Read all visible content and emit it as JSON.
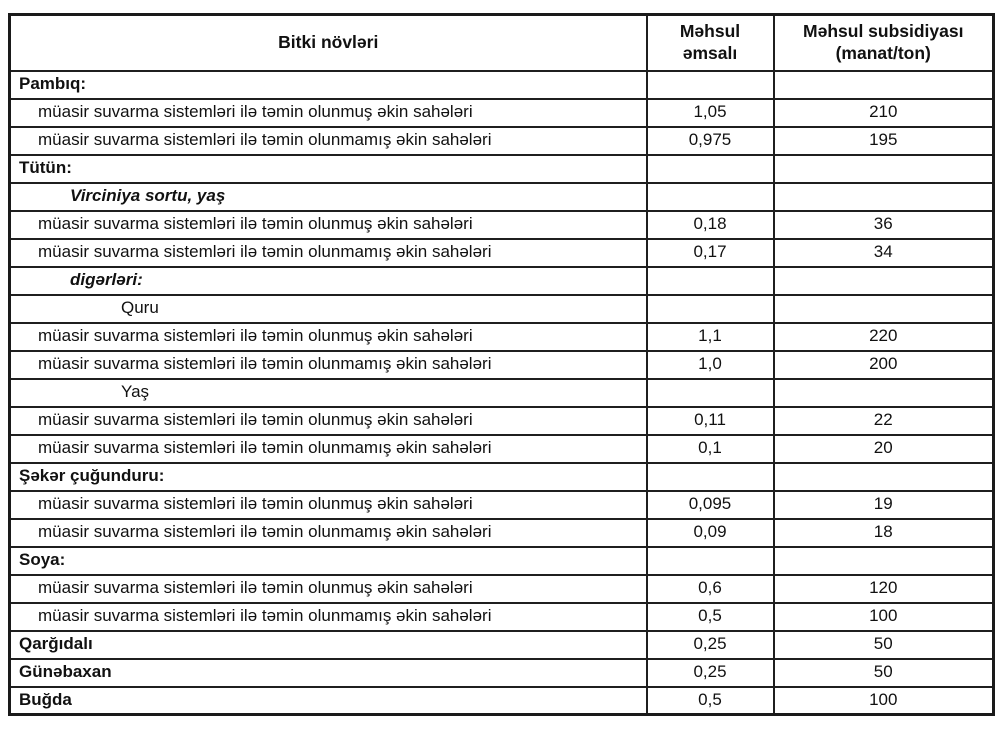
{
  "table": {
    "columns": [
      {
        "label": "Bitki növləri"
      },
      {
        "label": "Məhsul\nəmsalı"
      },
      {
        "label": "Məhsul subsidiyası\n(manat/ton)"
      }
    ],
    "rows": [
      {
        "label": "Pambıq:",
        "style": "bold",
        "indent": 0,
        "coef": "",
        "subsidy": ""
      },
      {
        "label": "müasir suvarma sistemləri ilə təmin olunmuş əkin sahələri",
        "style": "normal",
        "indent": 1,
        "coef": "1,05",
        "subsidy": "210"
      },
      {
        "label": "müasir suvarma sistemləri ilə təmin olunmamış əkin sahələri",
        "style": "normal",
        "indent": 1,
        "coef": "0,975",
        "subsidy": "195"
      },
      {
        "label": "Tütün:",
        "style": "bold",
        "indent": 0,
        "coef": "",
        "subsidy": ""
      },
      {
        "label": "Virciniya sortu, yaş",
        "style": "bold-italic",
        "indent": 2,
        "coef": "",
        "subsidy": ""
      },
      {
        "label": "müasir suvarma sistemləri ilə təmin olunmuş əkin sahələri",
        "style": "normal",
        "indent": 1,
        "coef": "0,18",
        "subsidy": "36"
      },
      {
        "label": "müasir suvarma sistemləri ilə təmin olunmamış əkin sahələri",
        "style": "normal",
        "indent": 1,
        "coef": "0,17",
        "subsidy": "34"
      },
      {
        "label": "digərləri:",
        "style": "bold-italic",
        "indent": 2,
        "coef": "",
        "subsidy": ""
      },
      {
        "label": "Quru",
        "style": "normal",
        "indent": 3,
        "coef": "",
        "subsidy": ""
      },
      {
        "label": "müasir suvarma sistemləri ilə təmin olunmuş əkin sahələri",
        "style": "normal",
        "indent": 1,
        "coef": "1,1",
        "subsidy": "220"
      },
      {
        "label": "müasir suvarma sistemləri ilə təmin olunmamış əkin sahələri",
        "style": "normal",
        "indent": 1,
        "coef": "1,0",
        "subsidy": "200"
      },
      {
        "label": "Yaş",
        "style": "normal",
        "indent": 3,
        "coef": "",
        "subsidy": ""
      },
      {
        "label": "müasir suvarma sistemləri ilə təmin olunmuş əkin sahələri",
        "style": "normal",
        "indent": 1,
        "coef": "0,11",
        "subsidy": "22"
      },
      {
        "label": "müasir suvarma sistemləri ilə təmin olunmamış əkin sahələri",
        "style": "normal",
        "indent": 1,
        "coef": "0,1",
        "subsidy": "20"
      },
      {
        "label": "Şəkər çuğunduru:",
        "style": "bold",
        "indent": 0,
        "coef": "",
        "subsidy": ""
      },
      {
        "label": "müasir suvarma sistemləri ilə təmin olunmuş əkin sahələri",
        "style": "normal",
        "indent": 1,
        "coef": "0,095",
        "subsidy": "19"
      },
      {
        "label": "müasir suvarma sistemləri ilə təmin olunmamış əkin sahələri",
        "style": "normal",
        "indent": 1,
        "coef": "0,09",
        "subsidy": "18"
      },
      {
        "label": "Soya:",
        "style": "bold",
        "indent": 0,
        "coef": "",
        "subsidy": ""
      },
      {
        "label": "müasir suvarma sistemləri ilə təmin olunmuş əkin sahələri",
        "style": "normal",
        "indent": 1,
        "coef": "0,6",
        "subsidy": "120"
      },
      {
        "label": "müasir suvarma sistemləri ilə təmin olunmamış əkin sahələri",
        "style": "normal",
        "indent": 1,
        "coef": "0,5",
        "subsidy": "100"
      },
      {
        "label": "Qarğıdalı",
        "style": "bold",
        "indent": 0,
        "coef": "0,25",
        "subsidy": "50"
      },
      {
        "label": "Günəbaxan",
        "style": "bold",
        "indent": 0,
        "coef": "0,25",
        "subsidy": "50"
      },
      {
        "label": "Buğda",
        "style": "bold",
        "indent": 0,
        "coef": "0,5",
        "subsidy": "100"
      }
    ]
  }
}
